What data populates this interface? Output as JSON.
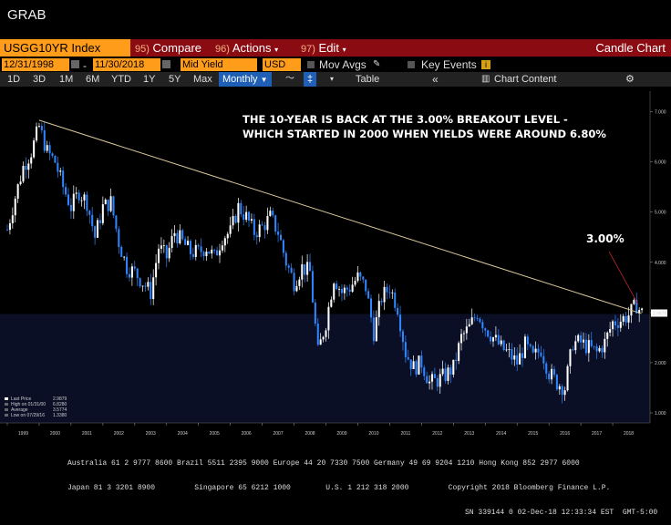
{
  "window": {
    "title": "GRAB"
  },
  "toolbar": {
    "ticker": "USGG10YR Index",
    "compare_num": "95)",
    "compare_label": "Compare",
    "actions_num": "96)",
    "actions_label": "Actions",
    "edit_num": "97)",
    "edit_label": "Edit",
    "chart_type": "Candle Chart"
  },
  "filters": {
    "start_date": "12/31/1998",
    "end_date": "11/30/2018",
    "field": "Mid Yield",
    "currency": "USD",
    "mov_avgs": "Mov Avgs",
    "key_events": "Key Events"
  },
  "ranges": {
    "buttons": [
      "1D",
      "3D",
      "1M",
      "6M",
      "YTD",
      "1Y",
      "5Y",
      "Max"
    ],
    "period": "Monthly",
    "table": "Table",
    "chart_content": "Chart Content"
  },
  "annotation": {
    "line1": "THE 10-YEAR IS BACK AT THE 3.00% BREAKOUT LEVEL -",
    "line2": "WHICH STARTED IN 2000 WHEN YIELDS WERE AROUND 6.80%",
    "level": "3.00%"
  },
  "legend": {
    "last_price": "Last Price",
    "last_price_value": "2.9879",
    "high": "High on 01/31/00",
    "high_value": "6.8280",
    "average": "Average",
    "average_value": "3.5774",
    "low": "Low on 07/29/16",
    "low_value": "1.3380"
  },
  "chart_data": {
    "type": "candlestick",
    "y_axis_side": "right",
    "ylim": [
      0.8,
      7.3
    ],
    "yticks": [
      "7.000",
      "6.000",
      "5.000",
      "4.000",
      "3.000",
      "2.000",
      "1.000"
    ],
    "last_value_label": "2.9879",
    "x_ticks": [
      "1999",
      "2000",
      "2001",
      "2002",
      "2003",
      "2004",
      "2005",
      "2006",
      "2007",
      "2008",
      "2009",
      "2010",
      "2011",
      "2012",
      "2013",
      "2014",
      "2015",
      "2016",
      "2017",
      "2018"
    ],
    "colors": {
      "up": "#ffffff",
      "down": "#2f86ff",
      "trendline": "#d9c79a",
      "bg": "#000000",
      "band": "#0a0f25"
    },
    "trendline": {
      "from": {
        "year": 2000.0,
        "value": 6.83
      },
      "to": {
        "year": 2018.9,
        "value": 2.98
      }
    },
    "series": [
      {
        "year": 1999.0,
        "value": 4.65
      },
      {
        "year": 1999.25,
        "value": 5.3
      },
      {
        "year": 1999.5,
        "value": 5.9
      },
      {
        "year": 1999.75,
        "value": 6.2
      },
      {
        "year": 2000.0,
        "value": 6.7
      },
      {
        "year": 2000.25,
        "value": 6.2
      },
      {
        "year": 2000.5,
        "value": 6.0
      },
      {
        "year": 2000.75,
        "value": 5.5
      },
      {
        "year": 2001.0,
        "value": 5.1
      },
      {
        "year": 2001.25,
        "value": 5.4
      },
      {
        "year": 2001.5,
        "value": 5.2
      },
      {
        "year": 2001.75,
        "value": 4.5
      },
      {
        "year": 2002.0,
        "value": 5.1
      },
      {
        "year": 2002.25,
        "value": 5.2
      },
      {
        "year": 2002.5,
        "value": 4.4
      },
      {
        "year": 2002.75,
        "value": 3.9
      },
      {
        "year": 2003.0,
        "value": 3.8
      },
      {
        "year": 2003.25,
        "value": 3.6
      },
      {
        "year": 2003.5,
        "value": 3.4
      },
      {
        "year": 2003.75,
        "value": 4.3
      },
      {
        "year": 2004.0,
        "value": 4.1
      },
      {
        "year": 2004.25,
        "value": 4.6
      },
      {
        "year": 2004.5,
        "value": 4.4
      },
      {
        "year": 2004.75,
        "value": 4.2
      },
      {
        "year": 2005.0,
        "value": 4.2
      },
      {
        "year": 2005.25,
        "value": 4.3
      },
      {
        "year": 2005.5,
        "value": 4.1
      },
      {
        "year": 2005.75,
        "value": 4.5
      },
      {
        "year": 2006.0,
        "value": 4.6
      },
      {
        "year": 2006.25,
        "value": 5.1
      },
      {
        "year": 2006.5,
        "value": 4.9
      },
      {
        "year": 2006.75,
        "value": 4.6
      },
      {
        "year": 2007.0,
        "value": 4.7
      },
      {
        "year": 2007.25,
        "value": 4.9
      },
      {
        "year": 2007.5,
        "value": 4.6
      },
      {
        "year": 2007.75,
        "value": 4.0
      },
      {
        "year": 2008.0,
        "value": 3.6
      },
      {
        "year": 2008.25,
        "value": 3.9
      },
      {
        "year": 2008.5,
        "value": 3.8
      },
      {
        "year": 2008.75,
        "value": 2.2
      },
      {
        "year": 2009.0,
        "value": 2.8
      },
      {
        "year": 2009.25,
        "value": 3.7
      },
      {
        "year": 2009.5,
        "value": 3.4
      },
      {
        "year": 2009.75,
        "value": 3.5
      },
      {
        "year": 2010.0,
        "value": 3.7
      },
      {
        "year": 2010.25,
        "value": 3.5
      },
      {
        "year": 2010.5,
        "value": 2.6
      },
      {
        "year": 2010.75,
        "value": 3.3
      },
      {
        "year": 2011.0,
        "value": 3.5
      },
      {
        "year": 2011.25,
        "value": 3.1
      },
      {
        "year": 2011.5,
        "value": 2.2
      },
      {
        "year": 2011.75,
        "value": 1.9
      },
      {
        "year": 2012.0,
        "value": 2.0
      },
      {
        "year": 2012.25,
        "value": 1.6
      },
      {
        "year": 2012.5,
        "value": 1.65
      },
      {
        "year": 2012.75,
        "value": 1.75
      },
      {
        "year": 2013.0,
        "value": 1.9
      },
      {
        "year": 2013.25,
        "value": 2.5
      },
      {
        "year": 2013.5,
        "value": 2.7
      },
      {
        "year": 2013.75,
        "value": 3.0
      },
      {
        "year": 2014.0,
        "value": 2.7
      },
      {
        "year": 2014.25,
        "value": 2.5
      },
      {
        "year": 2014.5,
        "value": 2.3
      },
      {
        "year": 2014.75,
        "value": 2.17
      },
      {
        "year": 2015.0,
        "value": 2.0
      },
      {
        "year": 2015.25,
        "value": 2.35
      },
      {
        "year": 2015.5,
        "value": 2.1
      },
      {
        "year": 2015.75,
        "value": 2.27
      },
      {
        "year": 2016.0,
        "value": 1.8
      },
      {
        "year": 2016.25,
        "value": 1.6
      },
      {
        "year": 2016.5,
        "value": 1.5
      },
      {
        "year": 2016.75,
        "value": 2.4
      },
      {
        "year": 2017.0,
        "value": 2.4
      },
      {
        "year": 2017.25,
        "value": 2.3
      },
      {
        "year": 2017.5,
        "value": 2.2
      },
      {
        "year": 2017.75,
        "value": 2.4
      },
      {
        "year": 2018.0,
        "value": 2.8
      },
      {
        "year": 2018.25,
        "value": 2.85
      },
      {
        "year": 2018.5,
        "value": 2.95
      },
      {
        "year": 2018.75,
        "value": 3.15
      },
      {
        "year": 2018.9,
        "value": 2.99
      }
    ]
  },
  "footer": {
    "line1": "Australia 61 2 9777 8600 Brazil 5511 2395 9000 Europe 44 20 7330 7500 Germany 49 69 9204 1210 Hong Kong 852 2977 6000",
    "line2": "Japan 81 3 3201 8900         Singapore 65 6212 1000        U.S. 1 212 318 2000         Copyright 2018 Bloomberg Finance L.P.",
    "line3": "SN 339144 0 02-Dec-18 12:33:34 EST  GMT-5:00"
  }
}
